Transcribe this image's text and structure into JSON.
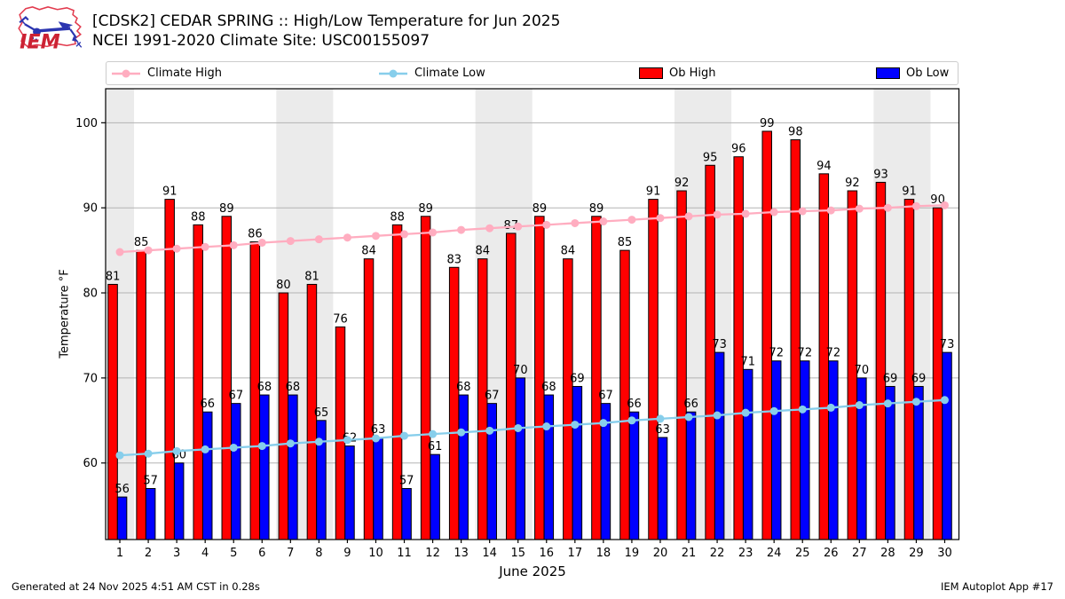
{
  "header": {
    "logo_text": "IEM",
    "title_line1": "[CDSK2] CEDAR SPRING :: High/Low Temperature for Jun 2025",
    "title_line2": "NCEI 1991-2020 Climate Site: USC00155097"
  },
  "legend": {
    "items": [
      {
        "label": "Climate High",
        "marker": "line-dot",
        "color": "#ffadc0"
      },
      {
        "label": "Climate Low",
        "marker": "line-dot",
        "color": "#87ceeb"
      },
      {
        "label": "Ob High",
        "marker": "swatch",
        "color": "#ff0000"
      },
      {
        "label": "Ob Low",
        "marker": "swatch",
        "color": "#0000ff"
      }
    ]
  },
  "chart_data": {
    "type": "bar",
    "title": "[CDSK2] CEDAR SPRING :: High/Low Temperature for Jun 2025",
    "subtitle": "NCEI 1991-2020 Climate Site: USC00155097",
    "xlabel": "June 2025",
    "ylabel": "Temperature °F",
    "x": [
      1,
      2,
      3,
      4,
      5,
      6,
      7,
      8,
      9,
      10,
      11,
      12,
      13,
      14,
      15,
      16,
      17,
      18,
      19,
      20,
      21,
      22,
      23,
      24,
      25,
      26,
      27,
      28,
      29,
      30
    ],
    "xlim": [
      0.5,
      30.5
    ],
    "ylim": [
      51,
      104
    ],
    "yticks": [
      60,
      70,
      80,
      90,
      100
    ],
    "grid": true,
    "legend_position": "top",
    "weekend_bands": [
      [
        1,
        1
      ],
      [
        7,
        8
      ],
      [
        14,
        15
      ],
      [
        21,
        22
      ],
      [
        28,
        29
      ]
    ],
    "band_color": "#ebebeb",
    "grid_color": "#b3b3b3",
    "series": [
      {
        "name": "Climate High",
        "type": "line",
        "color": "#ffadc0",
        "values": [
          84.8,
          85.0,
          85.2,
          85.4,
          85.6,
          85.9,
          86.1,
          86.3,
          86.5,
          86.7,
          86.9,
          87.1,
          87.4,
          87.6,
          87.8,
          88.0,
          88.2,
          88.4,
          88.6,
          88.8,
          89.0,
          89.2,
          89.3,
          89.5,
          89.6,
          89.7,
          89.9,
          90.0,
          90.2,
          90.3
        ]
      },
      {
        "name": "Climate Low",
        "type": "line",
        "color": "#87ceeb",
        "values": [
          60.9,
          61.1,
          61.4,
          61.6,
          61.8,
          62.0,
          62.3,
          62.5,
          62.7,
          62.9,
          63.2,
          63.4,
          63.6,
          63.8,
          64.1,
          64.3,
          64.5,
          64.7,
          65.0,
          65.2,
          65.4,
          65.6,
          65.9,
          66.1,
          66.3,
          66.5,
          66.8,
          67.0,
          67.2,
          67.4
        ]
      },
      {
        "name": "Ob High",
        "type": "bar",
        "color": "#ff0000",
        "values": [
          81,
          85,
          91,
          88,
          89,
          86,
          80,
          81,
          76,
          84,
          88,
          89,
          83,
          84,
          87,
          89,
          84,
          89,
          85,
          91,
          92,
          95,
          96,
          99,
          98,
          94,
          92,
          93,
          91,
          90
        ]
      },
      {
        "name": "Ob Low",
        "type": "bar",
        "color": "#0000ff",
        "values": [
          56,
          57,
          60,
          66,
          67,
          68,
          68,
          65,
          62,
          63,
          57,
          61,
          68,
          67,
          70,
          68,
          69,
          67,
          66,
          63,
          66,
          73,
          71,
          72,
          72,
          72,
          70,
          69,
          69,
          73
        ]
      }
    ]
  },
  "footer": {
    "left": "Generated at 24 Nov 2025 4:51 AM CST in 0.28s",
    "right": "IEM Autoplot App #17"
  }
}
